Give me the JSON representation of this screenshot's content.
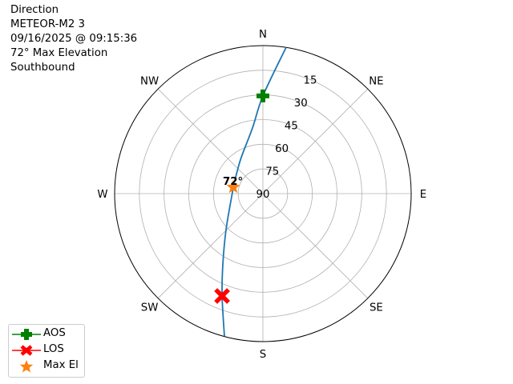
{
  "title_lines": [
    "Direction",
    "METEOR-M2 3",
    "09/16/2025 @ 09:15:36",
    "72° Max Elevation",
    "Southbound"
  ],
  "chart_data": {
    "type": "polar-line",
    "theta_direction": "clockwise",
    "theta_zero": "N",
    "direction_labels": [
      {
        "label": "N",
        "az": 0
      },
      {
        "label": "NE",
        "az": 45
      },
      {
        "label": "E",
        "az": 90
      },
      {
        "label": "SE",
        "az": 135
      },
      {
        "label": "S",
        "az": 180
      },
      {
        "label": "SW",
        "az": 225
      },
      {
        "label": "W",
        "az": 270
      },
      {
        "label": "NW",
        "az": 315
      }
    ],
    "radial_axis": {
      "reversed": true,
      "range": [
        0,
        90
      ],
      "ticks": [
        15,
        30,
        45,
        60,
        75,
        90
      ],
      "tick_labels": [
        "15",
        "30",
        "45",
        "60",
        "75",
        "90"
      ]
    },
    "grid": true,
    "track": {
      "color": "#1f77b4",
      "az": [
        9.0,
        0.0,
        351.0,
        326.3,
        282.2,
        273.0,
        225.6,
        209.6,
        201.7,
        195.1
      ],
      "el": [
        0.0,
        30.6,
        49.6,
        65.4,
        71.6,
        71.5,
        58.7,
        40.8,
        23.0,
        0.3
      ]
    },
    "markers": [
      {
        "name": "AOS",
        "az": 0.0,
        "el": 30.6,
        "color": "#008000",
        "symbol": "plus"
      },
      {
        "name": "LOS",
        "az": 201.7,
        "el": 23.0,
        "color": "#ff0000",
        "symbol": "x"
      },
      {
        "name": "Max El",
        "az": 282.2,
        "el": 71.6,
        "color": "#ff7f0e",
        "symbol": "star"
      }
    ],
    "annotation": {
      "text": "72°",
      "az": 282.2,
      "el": 71.6
    },
    "legend": {
      "placement": "lower-left",
      "entries": [
        "AOS",
        "LOS",
        "Max El"
      ]
    }
  }
}
